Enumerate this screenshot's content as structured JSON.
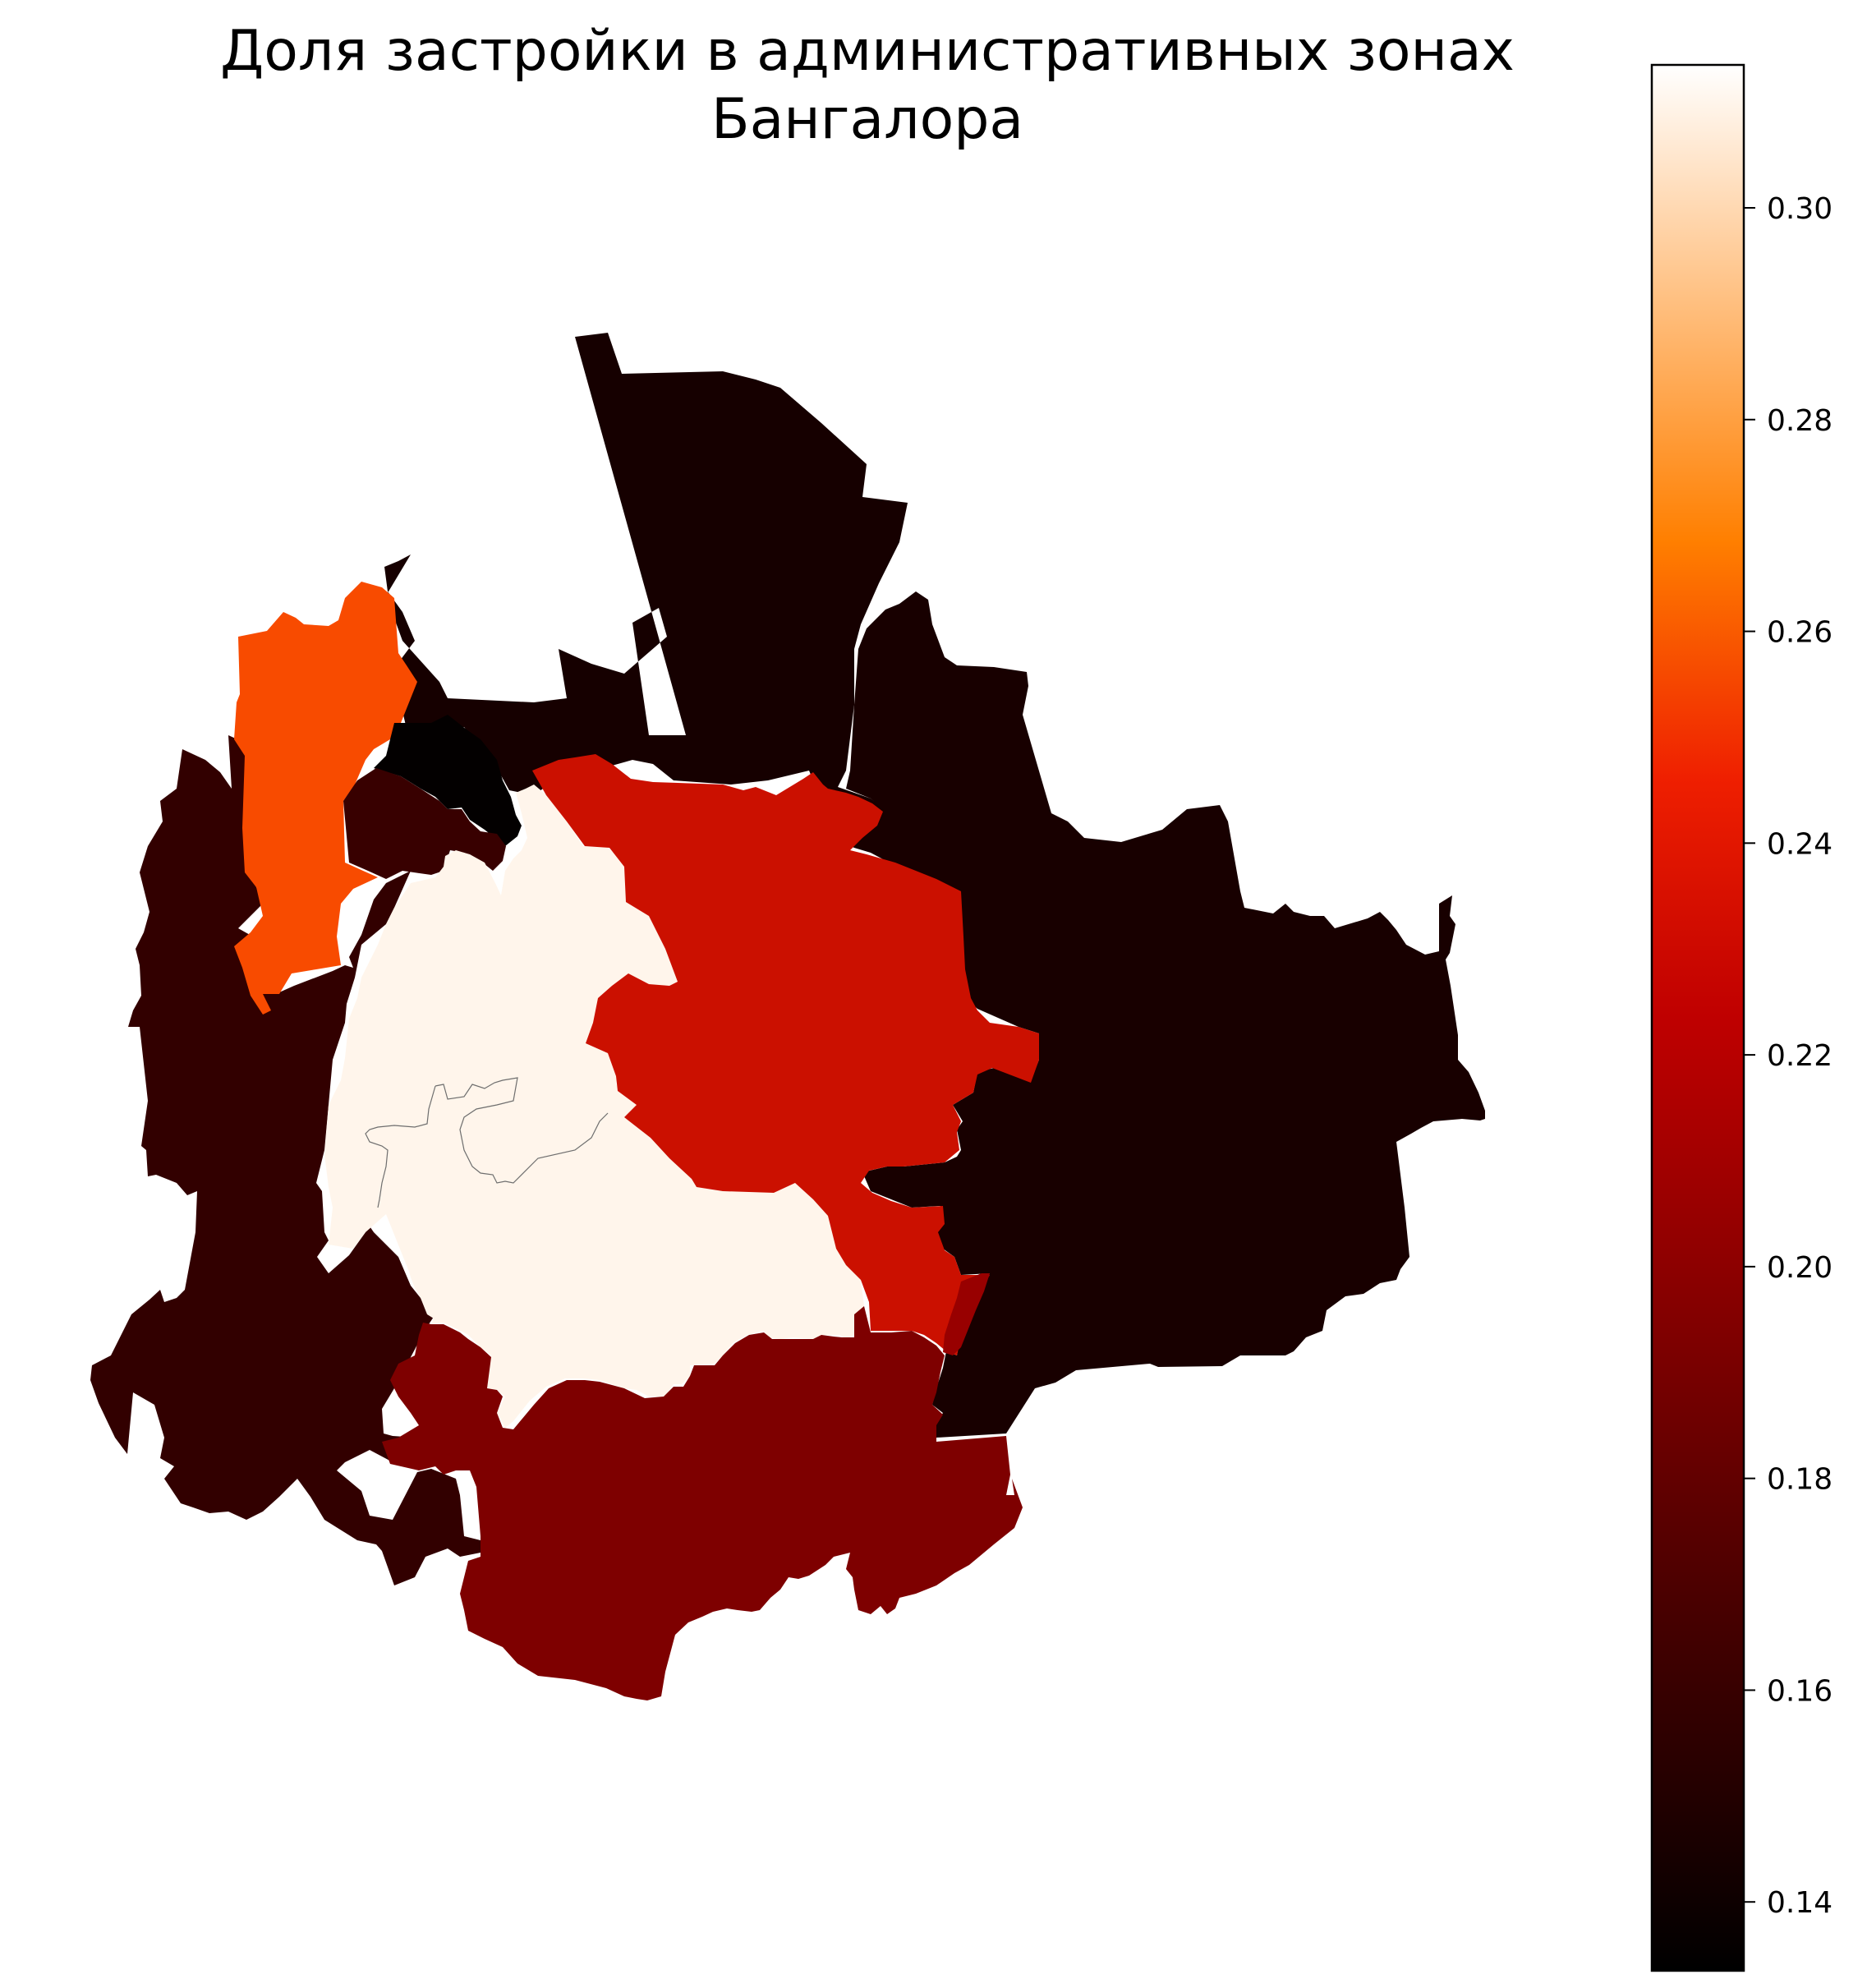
{
  "title": {
    "line1": "Доля застройки в административных зонах",
    "line2": "Бангалора"
  },
  "colorbar": {
    "colormap": "gist_heat",
    "vmin": 0.1335,
    "vmax": 0.3135,
    "ticks": [
      {
        "value": 0.14,
        "label": "0.14"
      },
      {
        "value": 0.16,
        "label": "0.16"
      },
      {
        "value": 0.18,
        "label": "0.18"
      },
      {
        "value": 0.2,
        "label": "0.20"
      },
      {
        "value": 0.22,
        "label": "0.22"
      },
      {
        "value": 0.24,
        "label": "0.24"
      },
      {
        "value": 0.26,
        "label": "0.26"
      },
      {
        "value": 0.28,
        "label": "0.28"
      },
      {
        "value": 0.3,
        "label": "0.30"
      }
    ]
  },
  "zones": [
    {
      "id": "north-zone",
      "share": 0.144
    },
    {
      "id": "east-zone",
      "share": 0.145
    },
    {
      "id": "west-outer-zone",
      "share": 0.157
    },
    {
      "id": "northwest-zone",
      "share": 0.25
    },
    {
      "id": "small-north-zone",
      "share": 0.135
    },
    {
      "id": "dark-wedge-zone",
      "share": 0.16
    },
    {
      "id": "central-zone",
      "share": 0.31
    },
    {
      "id": "northeast-center-zone",
      "share": 0.229
    },
    {
      "id": "south-zone",
      "share": 0.193
    },
    {
      "id": "southwest-zone",
      "share": 0.178
    },
    {
      "id": "small-southeast-zone",
      "share": 0.205
    }
  ]
}
